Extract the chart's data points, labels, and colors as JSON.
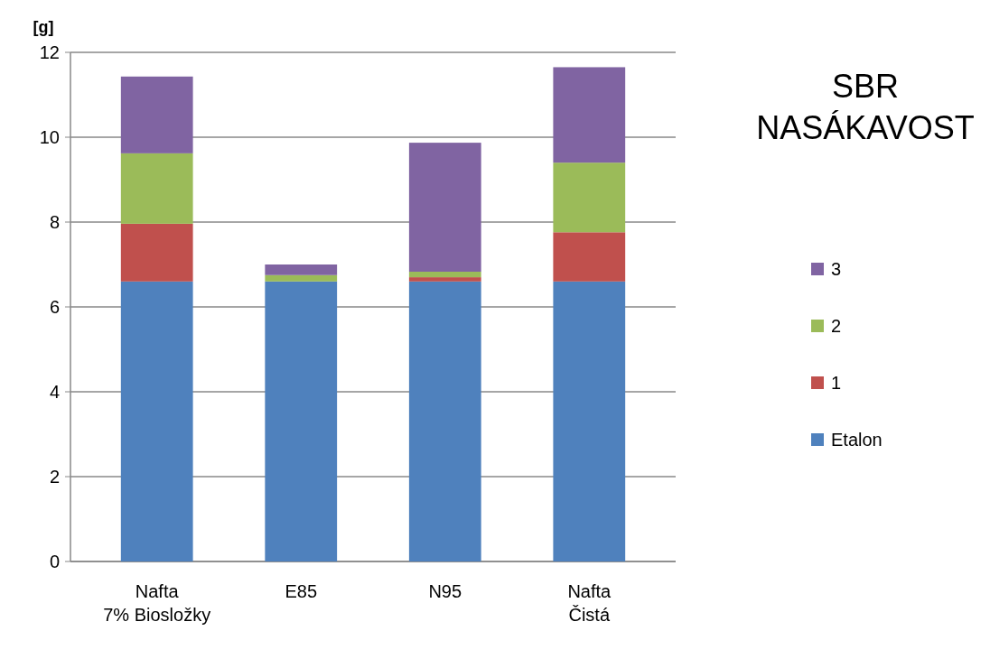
{
  "chart_data": {
    "type": "bar",
    "title": "SBR\nNASÁKAVOST",
    "ylabel": "[g]",
    "stacked": true,
    "categories": [
      "Nafta\n7% Biosložky",
      "E85",
      "N95",
      "Nafta\nČistá"
    ],
    "series": [
      {
        "name": "Etalon",
        "color": "#4f81bd",
        "values": [
          6.6,
          6.6,
          6.6,
          6.6
        ]
      },
      {
        "name": "1",
        "color": "#c0504d",
        "values": [
          1.36,
          0,
          0.1,
          1.16
        ]
      },
      {
        "name": "2",
        "color": "#9bbb59",
        "values": [
          1.66,
          0.15,
          0.13,
          1.64
        ]
      },
      {
        "name": "3",
        "color": "#8064a2",
        "values": [
          1.81,
          0.25,
          3.04,
          2.25
        ]
      }
    ],
    "ylim": [
      0,
      12
    ],
    "yticks": [
      0,
      2,
      4,
      6,
      8,
      10,
      12
    ],
    "grid": "y",
    "legend": "right"
  }
}
